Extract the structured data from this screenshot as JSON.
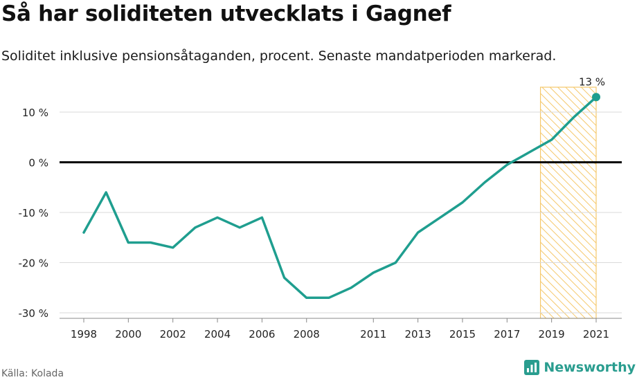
{
  "title": "Så har soliditeten utvecklats i Gagnef",
  "subtitle": "Soliditet inklusive pensionsåtaganden, procent. Senaste mandatperioden markerad.",
  "source": "Källa: Kolada",
  "brand": "Newsworthy",
  "colors": {
    "line": "#1f9e8f",
    "highlight_fill": "#f5c86b",
    "zero_line": "#000000",
    "grid": "#d9d9d9"
  },
  "chart_data": {
    "type": "line",
    "x": [
      1998,
      1999,
      2000,
      2001,
      2002,
      2003,
      2004,
      2005,
      2006,
      2007,
      2008,
      2009,
      2010,
      2011,
      2012,
      2013,
      2014,
      2015,
      2016,
      2017,
      2018,
      2019,
      2020,
      2021
    ],
    "series": [
      {
        "values": [
          -14,
          -6,
          -16,
          -16,
          -17,
          -13,
          -11,
          -13,
          -11,
          -23,
          -27,
          -27,
          -25,
          -22,
          -20,
          -14,
          -11,
          -8,
          -4,
          -0.5,
          2,
          4.5,
          9,
          13
        ]
      }
    ],
    "xticks": [
      1998,
      2000,
      2002,
      2004,
      2006,
      2008,
      2011,
      2013,
      2015,
      2017,
      2019,
      2021
    ],
    "yticks": [
      10,
      0,
      -10,
      -20,
      -30
    ],
    "ytick_labels": [
      "10 %",
      "0 %",
      "-10 %",
      "-20 %",
      "-30 %"
    ],
    "ylim": [
      -31,
      15
    ],
    "highlight_range": [
      2018.5,
      2021
    ],
    "end_label": "13 %"
  }
}
